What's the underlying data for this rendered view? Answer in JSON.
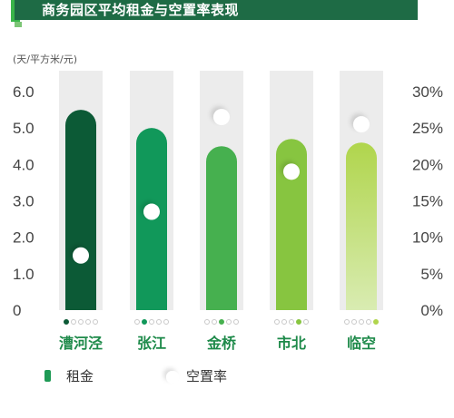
{
  "title": "商务园区平均租金与空置率表现",
  "chart_data": {
    "type": "bar",
    "title": "商务园区平均租金与空置率表现",
    "y_unit": "(天/平方米/元)",
    "categories": [
      "漕河泾",
      "张江",
      "金桥",
      "市北",
      "临空"
    ],
    "series": [
      {
        "name": "租金",
        "type": "bar",
        "axis": "left",
        "values": [
          5.5,
          5.0,
          4.5,
          4.7,
          4.6
        ]
      },
      {
        "name": "空置率",
        "type": "scatter",
        "axis": "right",
        "values": [
          7.5,
          13.5,
          26.5,
          19.0,
          25.5
        ]
      }
    ],
    "ylim_left": [
      0,
      6
    ],
    "yticks_left": [
      "0",
      "1.0",
      "2.0",
      "3.0",
      "4.0",
      "5.0",
      "6.0"
    ],
    "ylim_right": [
      0,
      30
    ],
    "yticks_right": [
      "0%",
      "5%",
      "10%",
      "15%",
      "20%",
      "25%",
      "30%"
    ],
    "bar_colors": [
      "#0c5a36",
      "#11985a",
      "#46b04f",
      "#87c540",
      "#b0d54c"
    ],
    "bar_colors_fade": [
      "#0c5a36",
      "#11985a",
      "#46b04f",
      "#87c540",
      "#d9ecb2"
    ],
    "track_color": "#ececec",
    "marker_color": "#ffffff",
    "category_color": "#1e8a4a",
    "legend_position": "bottom-left"
  }
}
